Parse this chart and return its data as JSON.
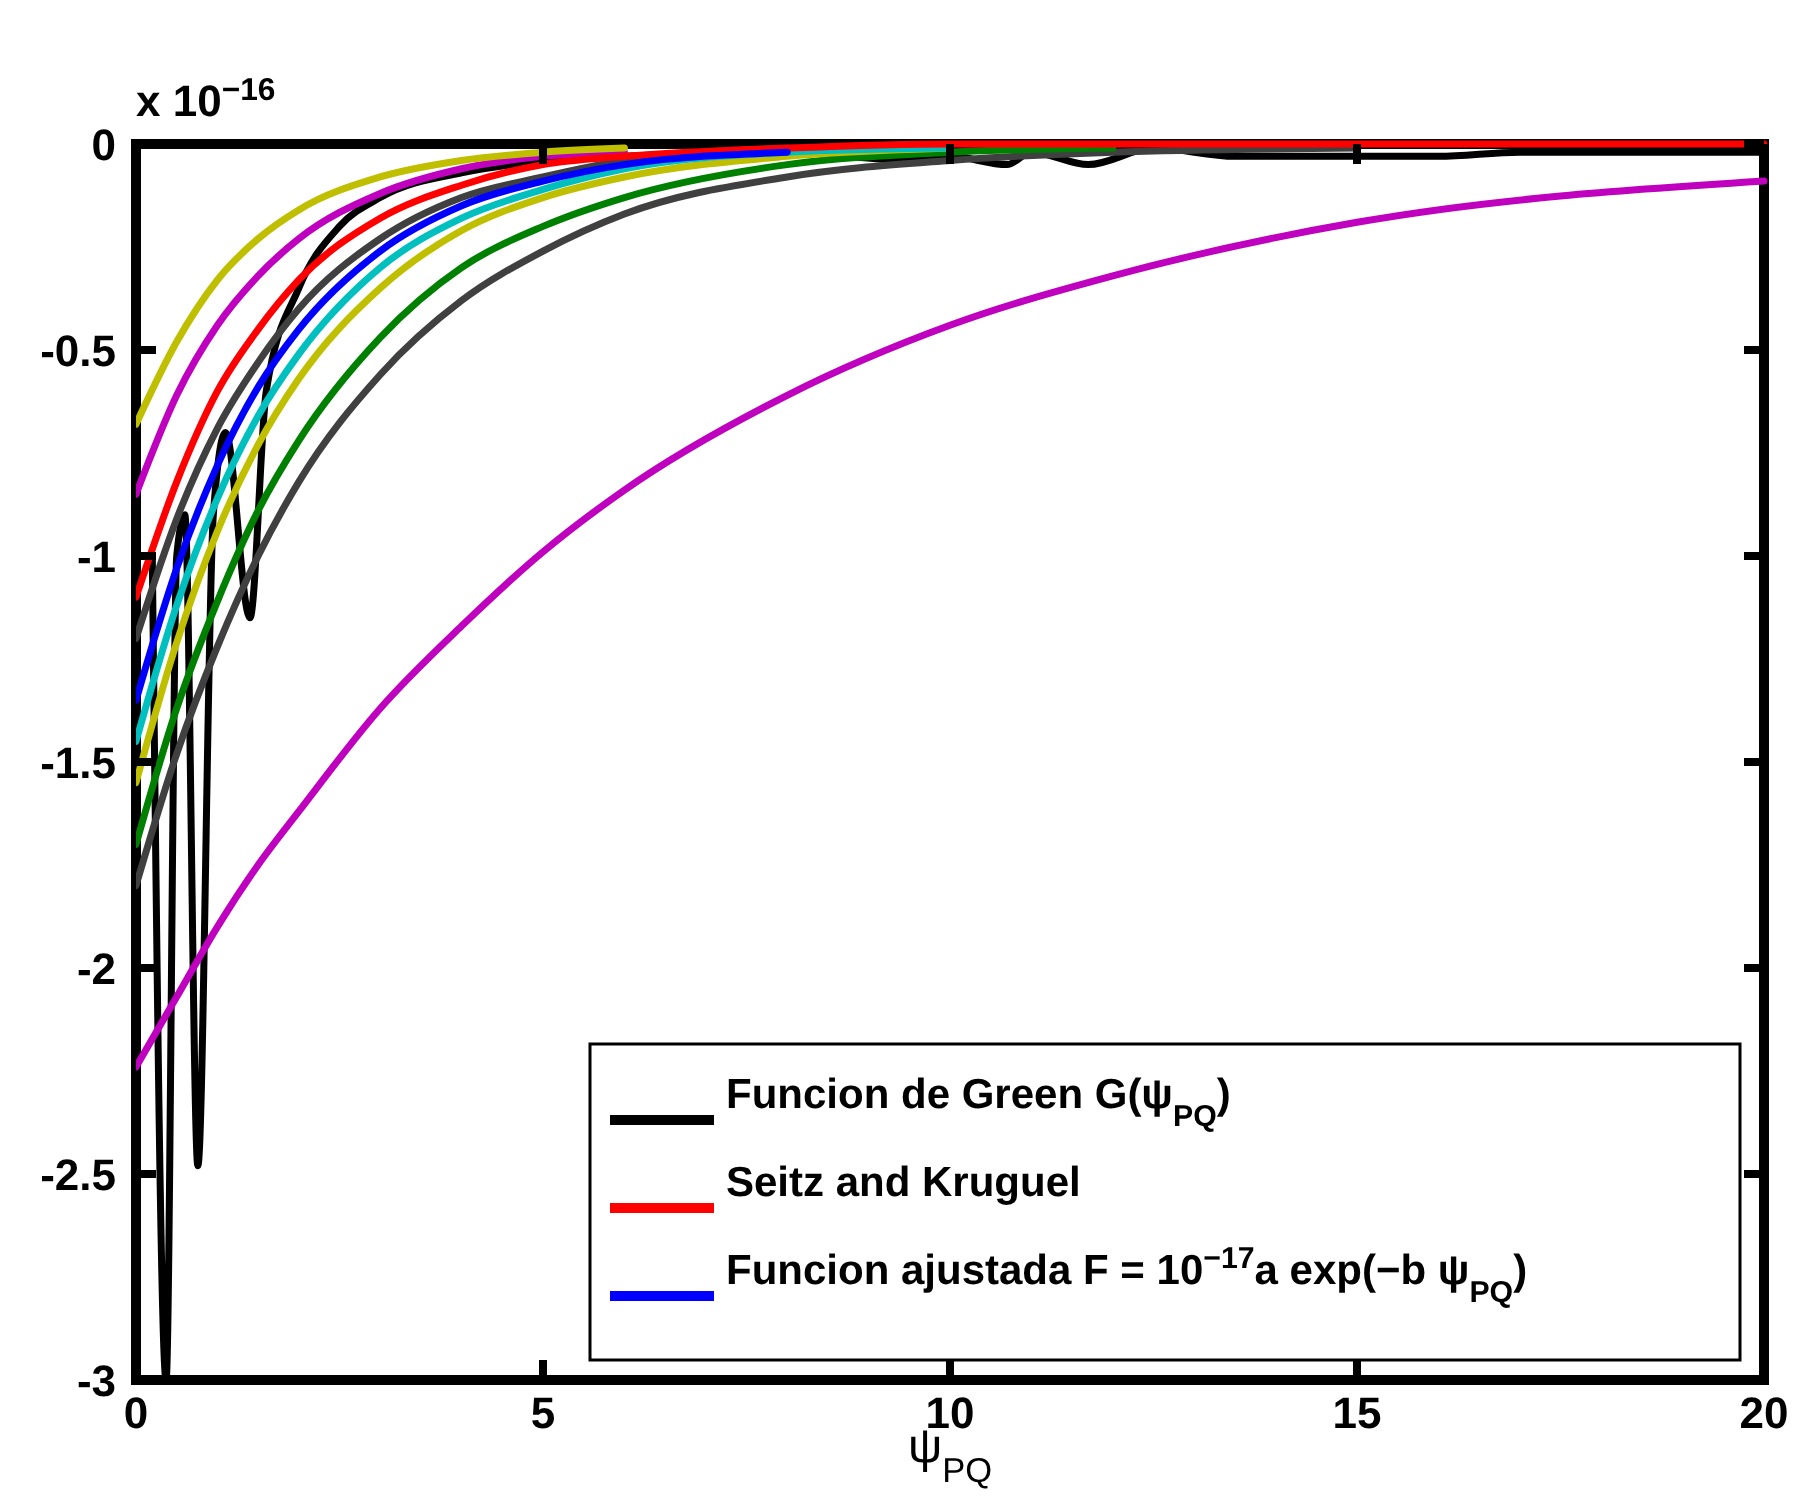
{
  "chart_data": {
    "type": "line",
    "xlabel": "ψ$_{PQ}$",
    "annotations": [
      "x 10$^{−16}$"
    ],
    "x": [
      0,
      0.5,
      1,
      1.5,
      2,
      3,
      4,
      5,
      6,
      8,
      10,
      12,
      15,
      20
    ],
    "xlim": [
      0,
      20
    ],
    "xticks": [
      0,
      5,
      10,
      15,
      20
    ],
    "ylim": [
      -3,
      0
    ],
    "yticks": [
      -3,
      -2.5,
      -2,
      -1.5,
      -1,
      -0.5,
      0
    ],
    "grid": false,
    "legend": "bottom right",
    "line_style": "solid",
    "marker": "none",
    "series": [
      {
        "name": "Funcion de Green G(ψ$_{PQ}$)",
        "color": "#000000",
        "x": [
          0.2,
          0.37,
          0.5,
          0.6,
          0.76,
          0.95,
          1.1,
          1.4,
          1.6,
          2,
          2.5,
          3,
          4,
          6,
          8,
          9.5,
          10,
          10.7,
          11,
          11.7,
          12.5,
          13.5,
          15,
          16,
          17,
          18,
          20
        ],
        "values": [
          -1.0,
          -3,
          -1.0,
          -0.9,
          -2.48,
          -0.9,
          -0.7,
          -1.15,
          -0.6,
          -0.35,
          -0.2,
          -0.13,
          -0.07,
          -0.03,
          -0.02,
          -0.04,
          -0.03,
          -0.05,
          -0.02,
          -0.05,
          -0.01,
          -0.03,
          -0.03,
          -0.03,
          -0.02,
          -0.02,
          -0.02
        ]
      },
      {
        "color": "#bf00bf",
        "values": [
          -2.24,
          -2.07,
          -1.9,
          -1.75,
          -1.62,
          -1.37,
          -1.17,
          -0.99,
          -0.84,
          -0.61,
          -0.44,
          -0.32,
          -0.19,
          -0.09
        ]
      },
      {
        "color": "#404040",
        "values": [
          -1.8,
          -1.48,
          -1.22,
          -1.0,
          -0.82,
          -0.56,
          -0.38,
          -0.26,
          -0.17,
          -0.08,
          -0.04,
          -0.02,
          -0.01,
          null
        ]
      },
      {
        "color": "#008000",
        "values": [
          -1.7,
          -1.37,
          -1.11,
          -0.89,
          -0.72,
          -0.47,
          -0.3,
          -0.2,
          -0.13,
          -0.05,
          -0.02,
          -0.01,
          null,
          null
        ]
      },
      {
        "color": "#bfbf00",
        "values": [
          -1.55,
          -1.21,
          -0.94,
          -0.73,
          -0.57,
          -0.35,
          -0.21,
          -0.13,
          -0.08,
          -0.03,
          -0.01,
          null,
          null,
          null
        ]
      },
      {
        "color": "#00bfbf",
        "values": [
          -1.45,
          -1.12,
          -0.86,
          -0.66,
          -0.51,
          -0.3,
          -0.18,
          -0.11,
          -0.06,
          -0.02,
          -0.01,
          null,
          null,
          null
        ]
      },
      {
        "color": "#404040",
        "values": [
          -1.2,
          -0.91,
          -0.69,
          -0.53,
          -0.4,
          -0.23,
          -0.13,
          -0.08,
          -0.04,
          -0.01,
          null,
          null,
          null,
          null
        ]
      },
      {
        "color": "#bf00bf",
        "values": [
          -0.85,
          -0.61,
          -0.44,
          -0.32,
          -0.23,
          -0.12,
          -0.06,
          -0.03,
          -0.02,
          null,
          null,
          null,
          null,
          null
        ]
      },
      {
        "color": "#bfbf00",
        "values": [
          -0.68,
          -0.48,
          -0.33,
          -0.23,
          -0.16,
          -0.08,
          -0.04,
          -0.02,
          -0.01,
          null,
          null,
          null,
          null,
          null
        ]
      },
      {
        "name": "Seitz and Kruguel",
        "color": "#ff0000",
        "values": [
          -1.1,
          -0.82,
          -0.6,
          -0.45,
          -0.33,
          -0.18,
          -0.1,
          -0.05,
          -0.03,
          -0.01,
          0,
          0,
          0,
          0
        ]
      },
      {
        "name": "Funcion ajustada F = 10$^{−17}$a exp(−b ψ$_{PQ}$)",
        "color": "#0000ff",
        "values": [
          -1.35,
          -1.03,
          -0.78,
          -0.59,
          -0.45,
          -0.26,
          -0.15,
          -0.09,
          -0.05,
          -0.02,
          null,
          null,
          null,
          null
        ]
      }
    ]
  }
}
